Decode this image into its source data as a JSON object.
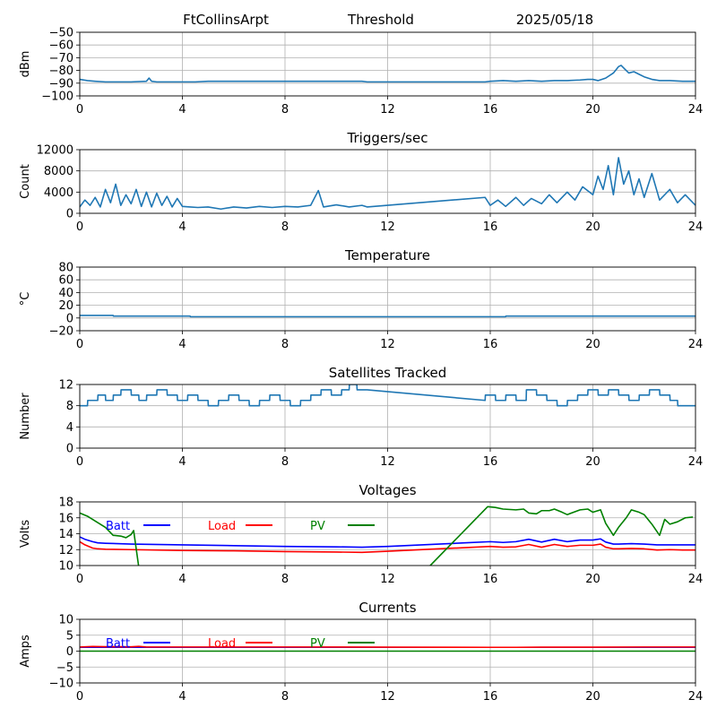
{
  "header": {
    "station": "FtCollinsArpt",
    "mode": "Threshold",
    "date": "2025/05/18"
  },
  "colors": {
    "series": "#1f77b4",
    "batt": "#0000ff",
    "load": "#ff0000",
    "pv": "#008000",
    "grid": "#b0b0b0",
    "axes": "#000000"
  },
  "x_ticks": [
    "0",
    "4",
    "8",
    "12",
    "16",
    "20",
    "24"
  ],
  "chart_data": [
    {
      "type": "line",
      "title": "",
      "ylabel": "dBm",
      "xlim": [
        0,
        24
      ],
      "ylim": [
        -100,
        -50
      ],
      "yticks": [
        -50,
        -60,
        -70,
        -80,
        -90,
        -100
      ],
      "ytick_labels": [
        "−50",
        "−60",
        "−70",
        "−80",
        "−90",
        "−100"
      ],
      "grid": true,
      "series": [
        {
          "color": "#1f77b4",
          "x": [
            0,
            0.3,
            0.6,
            1.0,
            1.5,
            2.0,
            2.6,
            2.7,
            2.8,
            3.0,
            3.5,
            4.0,
            4.5,
            5.0,
            6.0,
            7.0,
            8.0,
            9.0,
            10.0,
            11.0,
            11.2,
            12.0,
            14.0,
            15.8,
            16.0,
            16.5,
            17.0,
            17.5,
            18.0,
            18.5,
            19.0,
            19.5,
            19.8,
            20.0,
            20.2,
            20.5,
            20.8,
            21.0,
            21.1,
            21.2,
            21.4,
            21.6,
            21.8,
            22.0,
            22.3,
            22.6,
            23.0,
            23.5,
            24.0
          ],
          "y": [
            -87,
            -88,
            -88.5,
            -89,
            -89,
            -89,
            -88.5,
            -86,
            -88.5,
            -89,
            -89,
            -89,
            -89,
            -88.5,
            -88.5,
            -88.5,
            -88.5,
            -88.5,
            -88.5,
            -88.5,
            -89,
            -89,
            -89,
            -89,
            -88.5,
            -88,
            -88.5,
            -88,
            -88.5,
            -88,
            -88,
            -87.5,
            -87,
            -87,
            -88,
            -86,
            -82,
            -77,
            -76,
            -78,
            -82,
            -81,
            -83,
            -85,
            -87,
            -88,
            -88,
            -88.5,
            -88.5
          ]
        }
      ]
    },
    {
      "type": "line",
      "title": "Triggers/sec",
      "ylabel": "Count",
      "xlim": [
        0,
        24
      ],
      "ylim": [
        0,
        12000
      ],
      "yticks": [
        0,
        4000,
        8000,
        12000
      ],
      "ytick_labels": [
        "0",
        "4000",
        "8000",
        "12000"
      ],
      "grid": true,
      "series": [
        {
          "color": "#1f77b4",
          "x": [
            0,
            0.2,
            0.4,
            0.6,
            0.8,
            1.0,
            1.2,
            1.4,
            1.6,
            1.8,
            2.0,
            2.2,
            2.4,
            2.6,
            2.8,
            3.0,
            3.2,
            3.4,
            3.6,
            3.8,
            4.0,
            4.3,
            4.6,
            5.0,
            5.5,
            6.0,
            6.5,
            7.0,
            7.5,
            8.0,
            8.5,
            9.0,
            9.3,
            9.5,
            10.0,
            10.5,
            11.0,
            11.2,
            15.8,
            16.0,
            16.3,
            16.6,
            17.0,
            17.3,
            17.6,
            18.0,
            18.3,
            18.6,
            19.0,
            19.3,
            19.6,
            20.0,
            20.2,
            20.4,
            20.6,
            20.8,
            21.0,
            21.2,
            21.4,
            21.6,
            21.8,
            22.0,
            22.3,
            22.6,
            23.0,
            23.3,
            23.6,
            24.0
          ],
          "y": [
            1200,
            2500,
            1500,
            3000,
            1200,
            4500,
            2000,
            5500,
            1500,
            3500,
            1800,
            4500,
            1300,
            4000,
            1200,
            3800,
            1500,
            3200,
            1200,
            2800,
            1300,
            1200,
            1100,
            1200,
            800,
            1200,
            1000,
            1300,
            1100,
            1300,
            1200,
            1500,
            4300,
            1200,
            1600,
            1200,
            1500,
            1200,
            3000,
            1500,
            2500,
            1300,
            3000,
            1500,
            2800,
            1800,
            3500,
            2000,
            4000,
            2500,
            5000,
            3500,
            7000,
            4500,
            9000,
            3500,
            10500,
            5500,
            8000,
            3500,
            6500,
            3000,
            7500,
            2500,
            4500,
            2000,
            3500,
            1500
          ]
        }
      ]
    },
    {
      "type": "line",
      "title": "Temperature",
      "ylabel": "°C",
      "xlim": [
        0,
        24
      ],
      "ylim": [
        -20,
        80
      ],
      "yticks": [
        -20,
        0,
        20,
        40,
        60,
        80
      ],
      "ytick_labels": [
        "−20",
        "0",
        "20",
        "40",
        "60",
        "80"
      ],
      "grid": true,
      "series": [
        {
          "color": "#1f77b4",
          "x": [
            0,
            1.3,
            1.31,
            4.3,
            4.31,
            16.6,
            16.61,
            24
          ],
          "y": [
            4,
            4,
            3,
            3,
            2,
            2,
            3,
            3
          ]
        }
      ]
    },
    {
      "type": "line",
      "title": "Satellites Tracked",
      "ylabel": "Number",
      "xlim": [
        0,
        24
      ],
      "ylim": [
        0,
        12
      ],
      "yticks": [
        0,
        4,
        8,
        12
      ],
      "ytick_labels": [
        "0",
        "4",
        "8",
        "12"
      ],
      "grid": true,
      "series": [
        {
          "color": "#1f77b4",
          "x": [
            0,
            0.3,
            0.31,
            0.7,
            0.71,
            1.0,
            1.01,
            1.3,
            1.31,
            1.6,
            1.61,
            2.0,
            2.01,
            2.3,
            2.31,
            2.6,
            2.61,
            3.0,
            3.01,
            3.4,
            3.41,
            3.8,
            3.81,
            4.2,
            4.21,
            4.6,
            4.61,
            5.0,
            5.01,
            5.4,
            5.41,
            5.8,
            5.81,
            6.2,
            6.21,
            6.6,
            6.61,
            7.0,
            7.01,
            7.4,
            7.41,
            7.8,
            7.81,
            8.2,
            8.21,
            8.6,
            8.61,
            9.0,
            9.01,
            9.4,
            9.41,
            9.8,
            9.81,
            10.2,
            10.21,
            10.5,
            10.51,
            10.8,
            10.81,
            11.2,
            15.8,
            15.81,
            16.2,
            16.21,
            16.6,
            16.61,
            17.0,
            17.01,
            17.4,
            17.41,
            17.8,
            17.81,
            18.2,
            18.21,
            18.6,
            18.61,
            19.0,
            19.01,
            19.4,
            19.41,
            19.8,
            19.81,
            20.2,
            20.21,
            20.6,
            20.61,
            21.0,
            21.01,
            21.4,
            21.41,
            21.8,
            21.81,
            22.2,
            22.21,
            22.6,
            22.61,
            23.0,
            23.01,
            23.3,
            23.31,
            24
          ],
          "y": [
            8,
            8,
            9,
            9,
            10,
            10,
            9,
            9,
            10,
            10,
            11,
            11,
            10,
            10,
            9,
            9,
            10,
            10,
            11,
            11,
            10,
            10,
            9,
            9,
            10,
            10,
            9,
            9,
            8,
            8,
            9,
            9,
            10,
            10,
            9,
            9,
            8,
            8,
            9,
            9,
            10,
            10,
            9,
            9,
            8,
            8,
            9,
            9,
            10,
            10,
            11,
            11,
            10,
            10,
            11,
            11,
            12,
            12,
            11,
            11,
            9,
            10,
            10,
            9,
            9,
            10,
            10,
            9,
            9,
            11,
            11,
            10,
            10,
            9,
            9,
            8,
            8,
            9,
            9,
            10,
            10,
            11,
            11,
            10,
            10,
            11,
            11,
            10,
            10,
            9,
            9,
            10,
            10,
            11,
            11,
            10,
            10,
            9,
            9,
            8,
            8
          ]
        }
      ]
    },
    {
      "type": "line",
      "title": "Voltages",
      "ylabel": "Volts",
      "xlim": [
        0,
        24
      ],
      "ylim": [
        10,
        18
      ],
      "yticks": [
        10,
        12,
        14,
        16,
        18
      ],
      "ytick_labels": [
        "10",
        "12",
        "14",
        "16",
        "18"
      ],
      "grid": true,
      "legend": [
        "Batt",
        "Load",
        "PV"
      ],
      "series": [
        {
          "name": "Batt",
          "color": "#0000ff",
          "x": [
            0,
            0.2,
            0.5,
            0.7,
            1.0,
            2.0,
            4.0,
            6.0,
            8.0,
            10.0,
            11.0,
            12.0,
            14.0,
            15.0,
            16.0,
            16.5,
            17.0,
            17.5,
            18.0,
            18.5,
            19.0,
            19.5,
            20.0,
            20.3,
            20.5,
            20.8,
            21.0,
            21.5,
            22.0,
            22.5,
            23.0,
            23.5,
            24.0
          ],
          "y": [
            13.6,
            13.3,
            13.0,
            12.85,
            12.8,
            12.7,
            12.6,
            12.5,
            12.4,
            12.35,
            12.3,
            12.4,
            12.7,
            12.85,
            13.0,
            12.9,
            13.0,
            13.3,
            12.95,
            13.3,
            13.0,
            13.2,
            13.2,
            13.35,
            12.95,
            12.7,
            12.7,
            12.75,
            12.7,
            12.6,
            12.6,
            12.6,
            12.6
          ]
        },
        {
          "name": "Load",
          "color": "#ff0000",
          "x": [
            0,
            0.2,
            0.5,
            0.7,
            1.0,
            2.0,
            4.0,
            6.0,
            8.0,
            10.0,
            11.0,
            12.0,
            14.0,
            15.0,
            16.0,
            16.5,
            17.0,
            17.5,
            18.0,
            18.5,
            19.0,
            19.5,
            20.0,
            20.3,
            20.5,
            20.8,
            21.0,
            21.5,
            22.0,
            22.5,
            23.0,
            23.5,
            24.0
          ],
          "y": [
            13.0,
            12.6,
            12.2,
            12.1,
            12.05,
            12.0,
            11.9,
            11.85,
            11.75,
            11.7,
            11.65,
            11.8,
            12.1,
            12.25,
            12.4,
            12.3,
            12.35,
            12.65,
            12.3,
            12.65,
            12.4,
            12.55,
            12.55,
            12.7,
            12.3,
            12.1,
            12.1,
            12.15,
            12.1,
            11.95,
            12.0,
            11.95,
            11.95
          ]
        },
        {
          "name": "PV",
          "color": "#008000",
          "x": [
            0,
            0.3,
            0.6,
            1.0,
            1.3,
            1.6,
            1.8,
            2.0,
            2.1,
            2.3,
            13.6,
            15.9,
            16.2,
            16.5,
            17.0,
            17.3,
            17.5,
            17.8,
            18.0,
            18.3,
            18.5,
            18.8,
            19.0,
            19.5,
            19.8,
            20.0,
            20.3,
            20.5,
            20.8,
            21.0,
            21.3,
            21.5,
            21.8,
            22.0,
            22.3,
            22.6,
            22.8,
            23.0,
            23.3,
            23.6,
            23.9
          ],
          "y": [
            16.6,
            16.2,
            15.6,
            14.8,
            13.8,
            13.7,
            13.5,
            13.9,
            14.4,
            9.8,
            9.8,
            17.4,
            17.3,
            17.1,
            17.0,
            17.1,
            16.6,
            16.5,
            16.9,
            16.9,
            17.1,
            16.7,
            16.4,
            17.0,
            17.1,
            16.7,
            17.0,
            15.3,
            13.8,
            14.8,
            16.0,
            17.0,
            16.7,
            16.4,
            15.2,
            13.8,
            15.8,
            15.2,
            15.5,
            16.0,
            16.1
          ]
        }
      ]
    },
    {
      "type": "line",
      "title": "Currents",
      "ylabel": "Amps",
      "xlim": [
        0,
        24
      ],
      "ylim": [
        -10,
        10
      ],
      "yticks": [
        -10,
        -5,
        0,
        5,
        10
      ],
      "ytick_labels": [
        "−10",
        "−5",
        "0",
        "5",
        "10"
      ],
      "grid": true,
      "legend": [
        "Batt",
        "Load",
        "PV"
      ],
      "series": [
        {
          "name": "Batt",
          "color": "#0000ff",
          "x": [
            0,
            24
          ],
          "y": [
            1.2,
            1.2
          ]
        },
        {
          "name": "Load",
          "color": "#ff0000",
          "x": [
            0,
            0.5,
            1.0,
            2.0,
            2.3,
            2.6,
            4.0,
            8.0,
            12.0,
            16.0,
            17.0,
            18.0,
            20.0,
            22.0,
            24.0
          ],
          "y": [
            1.3,
            1.45,
            1.4,
            1.35,
            1.5,
            1.3,
            1.3,
            1.3,
            1.25,
            1.2,
            1.2,
            1.25,
            1.25,
            1.3,
            1.3
          ]
        },
        {
          "name": "PV",
          "color": "#008000",
          "x": [
            0,
            24
          ],
          "y": [
            0,
            0
          ]
        }
      ]
    }
  ]
}
